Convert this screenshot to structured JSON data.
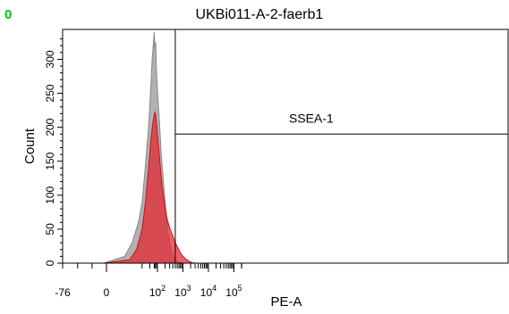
{
  "panel_tag": "0",
  "chart_data": {
    "type": "area",
    "title": "UKBi011-A-2-faerb1",
    "xlabel": "PE-A",
    "ylabel": "Count",
    "x_scale": "biexponential",
    "xlim": [
      -76,
      262144
    ],
    "ylim": [
      0,
      340
    ],
    "x_ticks": [
      {
        "value": -76,
        "label": "-76"
      },
      {
        "value": 0,
        "label": "0"
      },
      {
        "value": 100,
        "label": "10",
        "exp": "2"
      },
      {
        "value": 1000,
        "label": "10",
        "exp": "3"
      },
      {
        "value": 10000,
        "label": "10",
        "exp": "4"
      },
      {
        "value": 100000,
        "label": "10",
        "exp": "5"
      }
    ],
    "y_ticks": [
      0,
      50,
      100,
      150,
      200,
      250,
      300
    ],
    "series": [
      {
        "color": "#a8a8a8",
        "x": [
          -5,
          5,
          10,
          18,
          25,
          35,
          45,
          55,
          62,
          68,
          75,
          80,
          85,
          90,
          97,
          105,
          115,
          125,
          140,
          160,
          180,
          200,
          230,
          260,
          300,
          350,
          420,
          520,
          620,
          800,
          1000
        ],
        "y": [
          0,
          10,
          30,
          60,
          90,
          150,
          200,
          260,
          300,
          320,
          340,
          315,
          325,
          290,
          265,
          240,
          220,
          195,
          160,
          135,
          110,
          90,
          65,
          45,
          30,
          18,
          10,
          5,
          2,
          1,
          0
        ]
      },
      {
        "color": "#e8232d",
        "x": [
          -5,
          8,
          15,
          25,
          35,
          45,
          55,
          65,
          72,
          80,
          86,
          92,
          100,
          110,
          120,
          135,
          150,
          170,
          200,
          240,
          300,
          380,
          480,
          600,
          800,
          1000,
          1300,
          1700,
          2200,
          3000
        ],
        "y": [
          0,
          5,
          20,
          50,
          95,
          140,
          180,
          205,
          215,
          222,
          218,
          205,
          190,
          172,
          155,
          135,
          115,
          100,
          82,
          65,
          52,
          42,
          32,
          24,
          15,
          10,
          6,
          3,
          1,
          0
        ]
      }
    ],
    "gates": [
      {
        "label": "SSEA-1",
        "x_min": 500,
        "count_threshold": 190
      }
    ]
  }
}
